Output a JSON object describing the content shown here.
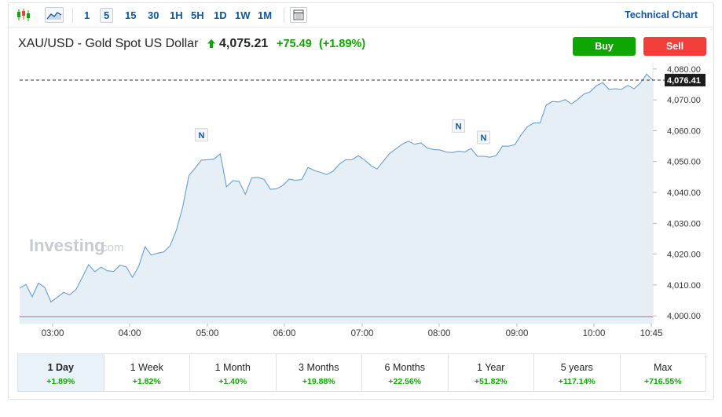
{
  "toolbar": {
    "candles_icon": "candlestick-icon",
    "area_icon": "area-chart-icon",
    "intervals": [
      "1",
      "5",
      "15",
      "30",
      "1H",
      "5H",
      "1D",
      "1W",
      "1M"
    ],
    "active_interval": "5",
    "table_icon": "table-icon",
    "technical_chart_label": "Technical Chart"
  },
  "instrument": {
    "name": "XAU/USD - Gold Spot US Dollar",
    "price": "4,075.21",
    "change": "+75.49",
    "change_pct": "(+1.89%)"
  },
  "actions": {
    "buy_label": "Buy",
    "sell_label": "Sell"
  },
  "watermark": {
    "brand": "Investing",
    "suffix": ".com"
  },
  "colors": {
    "up": "#0ea600",
    "down": "#f13e3a",
    "link": "#1256a0",
    "line": "#6a9ed0",
    "fill": "#e6eef6",
    "baseline": "#e06060"
  },
  "chart_data": {
    "type": "area",
    "title": "",
    "xlabel": "",
    "ylabel": "",
    "ylim": [
      3997.5,
      4082
    ],
    "y_ticks": [
      "4,080.00",
      "4,070.00",
      "4,060.00",
      "4,050.00",
      "4,040.00",
      "4,030.00",
      "4,020.00",
      "4,010.00",
      "4,000.00"
    ],
    "x_ticks": [
      "03:00",
      "04:00",
      "05:00",
      "06:00",
      "07:00",
      "08:00",
      "09:00",
      "10:00",
      "10:45"
    ],
    "current_value": 4076.41,
    "current_label": "4,076.41",
    "previous_close": 3999.7,
    "news_markers": [
      "N",
      "N",
      "N"
    ],
    "values": [
      4009.0,
      4010.2,
      4006.2,
      4010.6,
      4009.2,
      4004.5,
      4006.0,
      4007.6,
      4006.8,
      4008.6,
      4012.5,
      4016.6,
      4014.3,
      4015.8,
      4014.6,
      4014.4,
      4016.4,
      4015.9,
      4012.5,
      4016.1,
      4022.4,
      4019.7,
      4020.3,
      4020.7,
      4022.7,
      4027.8,
      4035.2,
      4045.5,
      4047.9,
      4050.5,
      4050.6,
      4050.8,
      4052.5,
      4041.8,
      4043.8,
      4043.6,
      4039.4,
      4044.7,
      4044.9,
      4044.2,
      4041.0,
      4041.2,
      4042.3,
      4044.3,
      4043.9,
      4044.2,
      4048.1,
      4047.1,
      4046.5,
      4045.8,
      4046.9,
      4049.2,
      4050.6,
      4050.6,
      4051.9,
      4050.6,
      4048.7,
      4047.6,
      4050.1,
      4052.6,
      4054.1,
      4055.6,
      4056.6,
      4055.6,
      4056.1,
      4054.4,
      4053.9,
      4053.8,
      4053.1,
      4052.9,
      4053.4,
      4053.1,
      4054.2,
      4051.7,
      4051.7,
      4051.4,
      4051.9,
      4055.0,
      4055.0,
      4055.5,
      4058.7,
      4061.3,
      4062.5,
      4062.5,
      4068.3,
      4069.5,
      4069.3,
      4070.1,
      4068.7,
      4070.1,
      4071.9,
      4072.6,
      4074.6,
      4075.6,
      4073.4,
      4073.6,
      4073.4,
      4074.7,
      4073.6,
      4075.4,
      4078.3,
      4076.4
    ]
  },
  "periods": [
    {
      "label": "1 Day",
      "value": "+1.89%"
    },
    {
      "label": "1 Week",
      "value": "+1.82%"
    },
    {
      "label": "1 Month",
      "value": "+1.40%"
    },
    {
      "label": "3 Months",
      "value": "+19.88%"
    },
    {
      "label": "6 Months",
      "value": "+22.56%"
    },
    {
      "label": "1 Year",
      "value": "+51.82%"
    },
    {
      "label": "5 years",
      "value": "+117.14%"
    },
    {
      "label": "Max",
      "value": "+716.55%"
    }
  ],
  "active_period": "1 Day"
}
